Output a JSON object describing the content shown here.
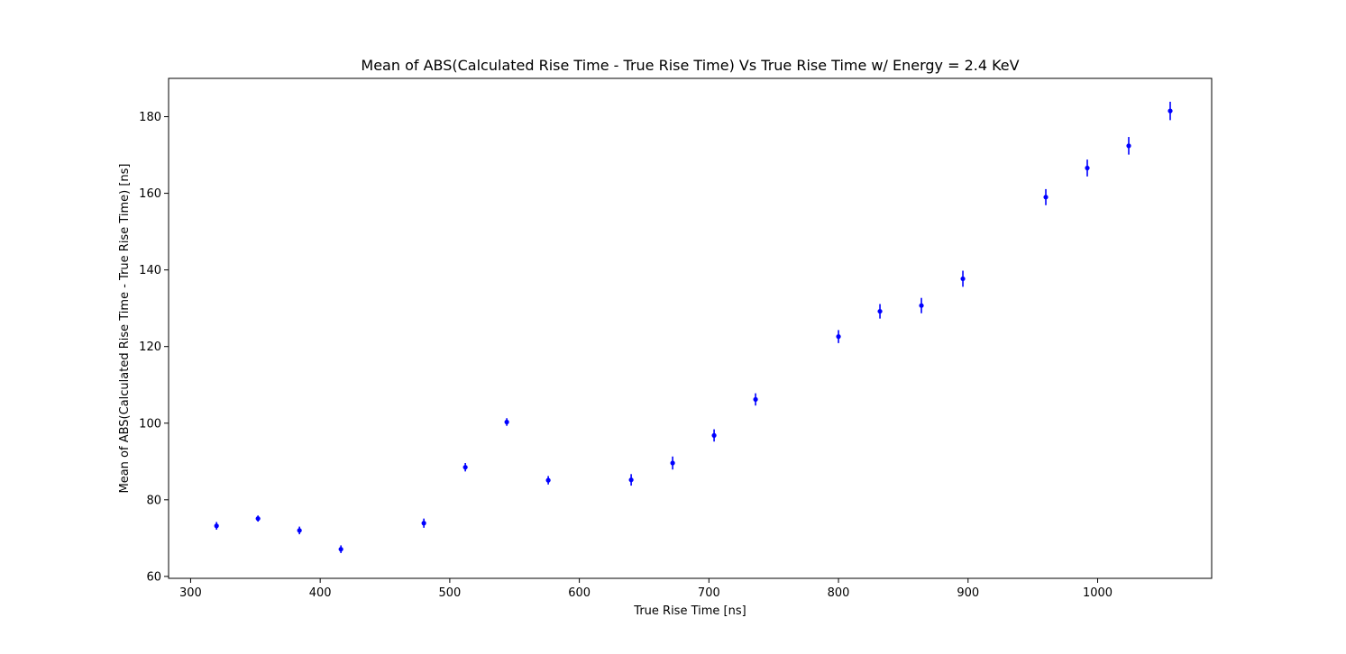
{
  "chart_data": {
    "type": "scatter",
    "title": "Mean of ABS(Calculated Rise Time - True Rise Time) Vs True Rise Time w/ Energy = 2.4 KeV",
    "xlabel": "True Rise Time [ns]",
    "ylabel": "Mean of ABS(Calculated Rise Time - True Rise Time) [ns]",
    "xlim": [
      283,
      1088
    ],
    "ylim": [
      59.5,
      190
    ],
    "xticks": [
      300,
      400,
      500,
      600,
      700,
      800,
      900,
      1000
    ],
    "yticks": [
      60,
      80,
      100,
      120,
      140,
      160,
      180
    ],
    "grid": false,
    "marker_color": "#0000ff",
    "points": [
      {
        "x": 320,
        "y": 73.2,
        "err": 1.0
      },
      {
        "x": 352,
        "y": 75.1,
        "err": 0.8
      },
      {
        "x": 384,
        "y": 72.0,
        "err": 1.0
      },
      {
        "x": 416,
        "y": 67.1,
        "err": 1.0
      },
      {
        "x": 480,
        "y": 73.9,
        "err": 1.2
      },
      {
        "x": 512,
        "y": 88.5,
        "err": 1.1
      },
      {
        "x": 544,
        "y": 100.3,
        "err": 1.0
      },
      {
        "x": 576,
        "y": 85.1,
        "err": 1.1
      },
      {
        "x": 640,
        "y": 85.2,
        "err": 1.5
      },
      {
        "x": 672,
        "y": 89.6,
        "err": 1.7
      },
      {
        "x": 704,
        "y": 96.8,
        "err": 1.6
      },
      {
        "x": 736,
        "y": 106.2,
        "err": 1.6
      },
      {
        "x": 800,
        "y": 122.6,
        "err": 1.7
      },
      {
        "x": 832,
        "y": 129.2,
        "err": 1.9
      },
      {
        "x": 864,
        "y": 130.7,
        "err": 2.0
      },
      {
        "x": 896,
        "y": 137.7,
        "err": 2.1
      },
      {
        "x": 960,
        "y": 159.0,
        "err": 2.1
      },
      {
        "x": 992,
        "y": 166.6,
        "err": 2.2
      },
      {
        "x": 1024,
        "y": 172.4,
        "err": 2.3
      },
      {
        "x": 1056,
        "y": 181.5,
        "err": 2.4
      }
    ]
  }
}
